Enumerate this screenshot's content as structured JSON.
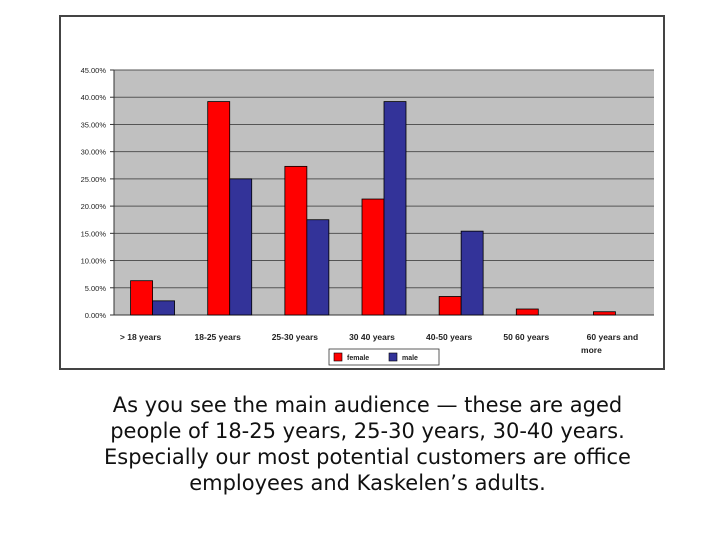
{
  "chart_data": {
    "type": "bar",
    "categories": [
      "> 18 years",
      "18-25 years",
      "25-30 years",
      "30 40 years",
      "40-50 years",
      "50 60 years",
      "60 years and more"
    ],
    "series": [
      {
        "name": "female",
        "values": [
          6.3,
          39.2,
          27.3,
          21.3,
          3.4,
          1.1,
          0.6
        ],
        "color": "#ff0000"
      },
      {
        "name": "male",
        "values": [
          2.6,
          25.0,
          17.5,
          39.2,
          15.4,
          0,
          0
        ],
        "color": "#333399"
      }
    ],
    "y_ticks": [
      "0.00%",
      "5.00%",
      "10.00%",
      "15.00%",
      "20.00%",
      "25.00%",
      "30.00%",
      "35.00%",
      "40.00%",
      "45.00%"
    ],
    "ylim": [
      0,
      45
    ],
    "plot_background": "#c0c0c0",
    "grid": true,
    "legend_position": "bottom"
  },
  "caption": "As you see the main audience — these are aged people of 18-25 years, 25-30 years, 30-40 years. Especially our most potential customers are office employees and Kaskelen’s adults."
}
